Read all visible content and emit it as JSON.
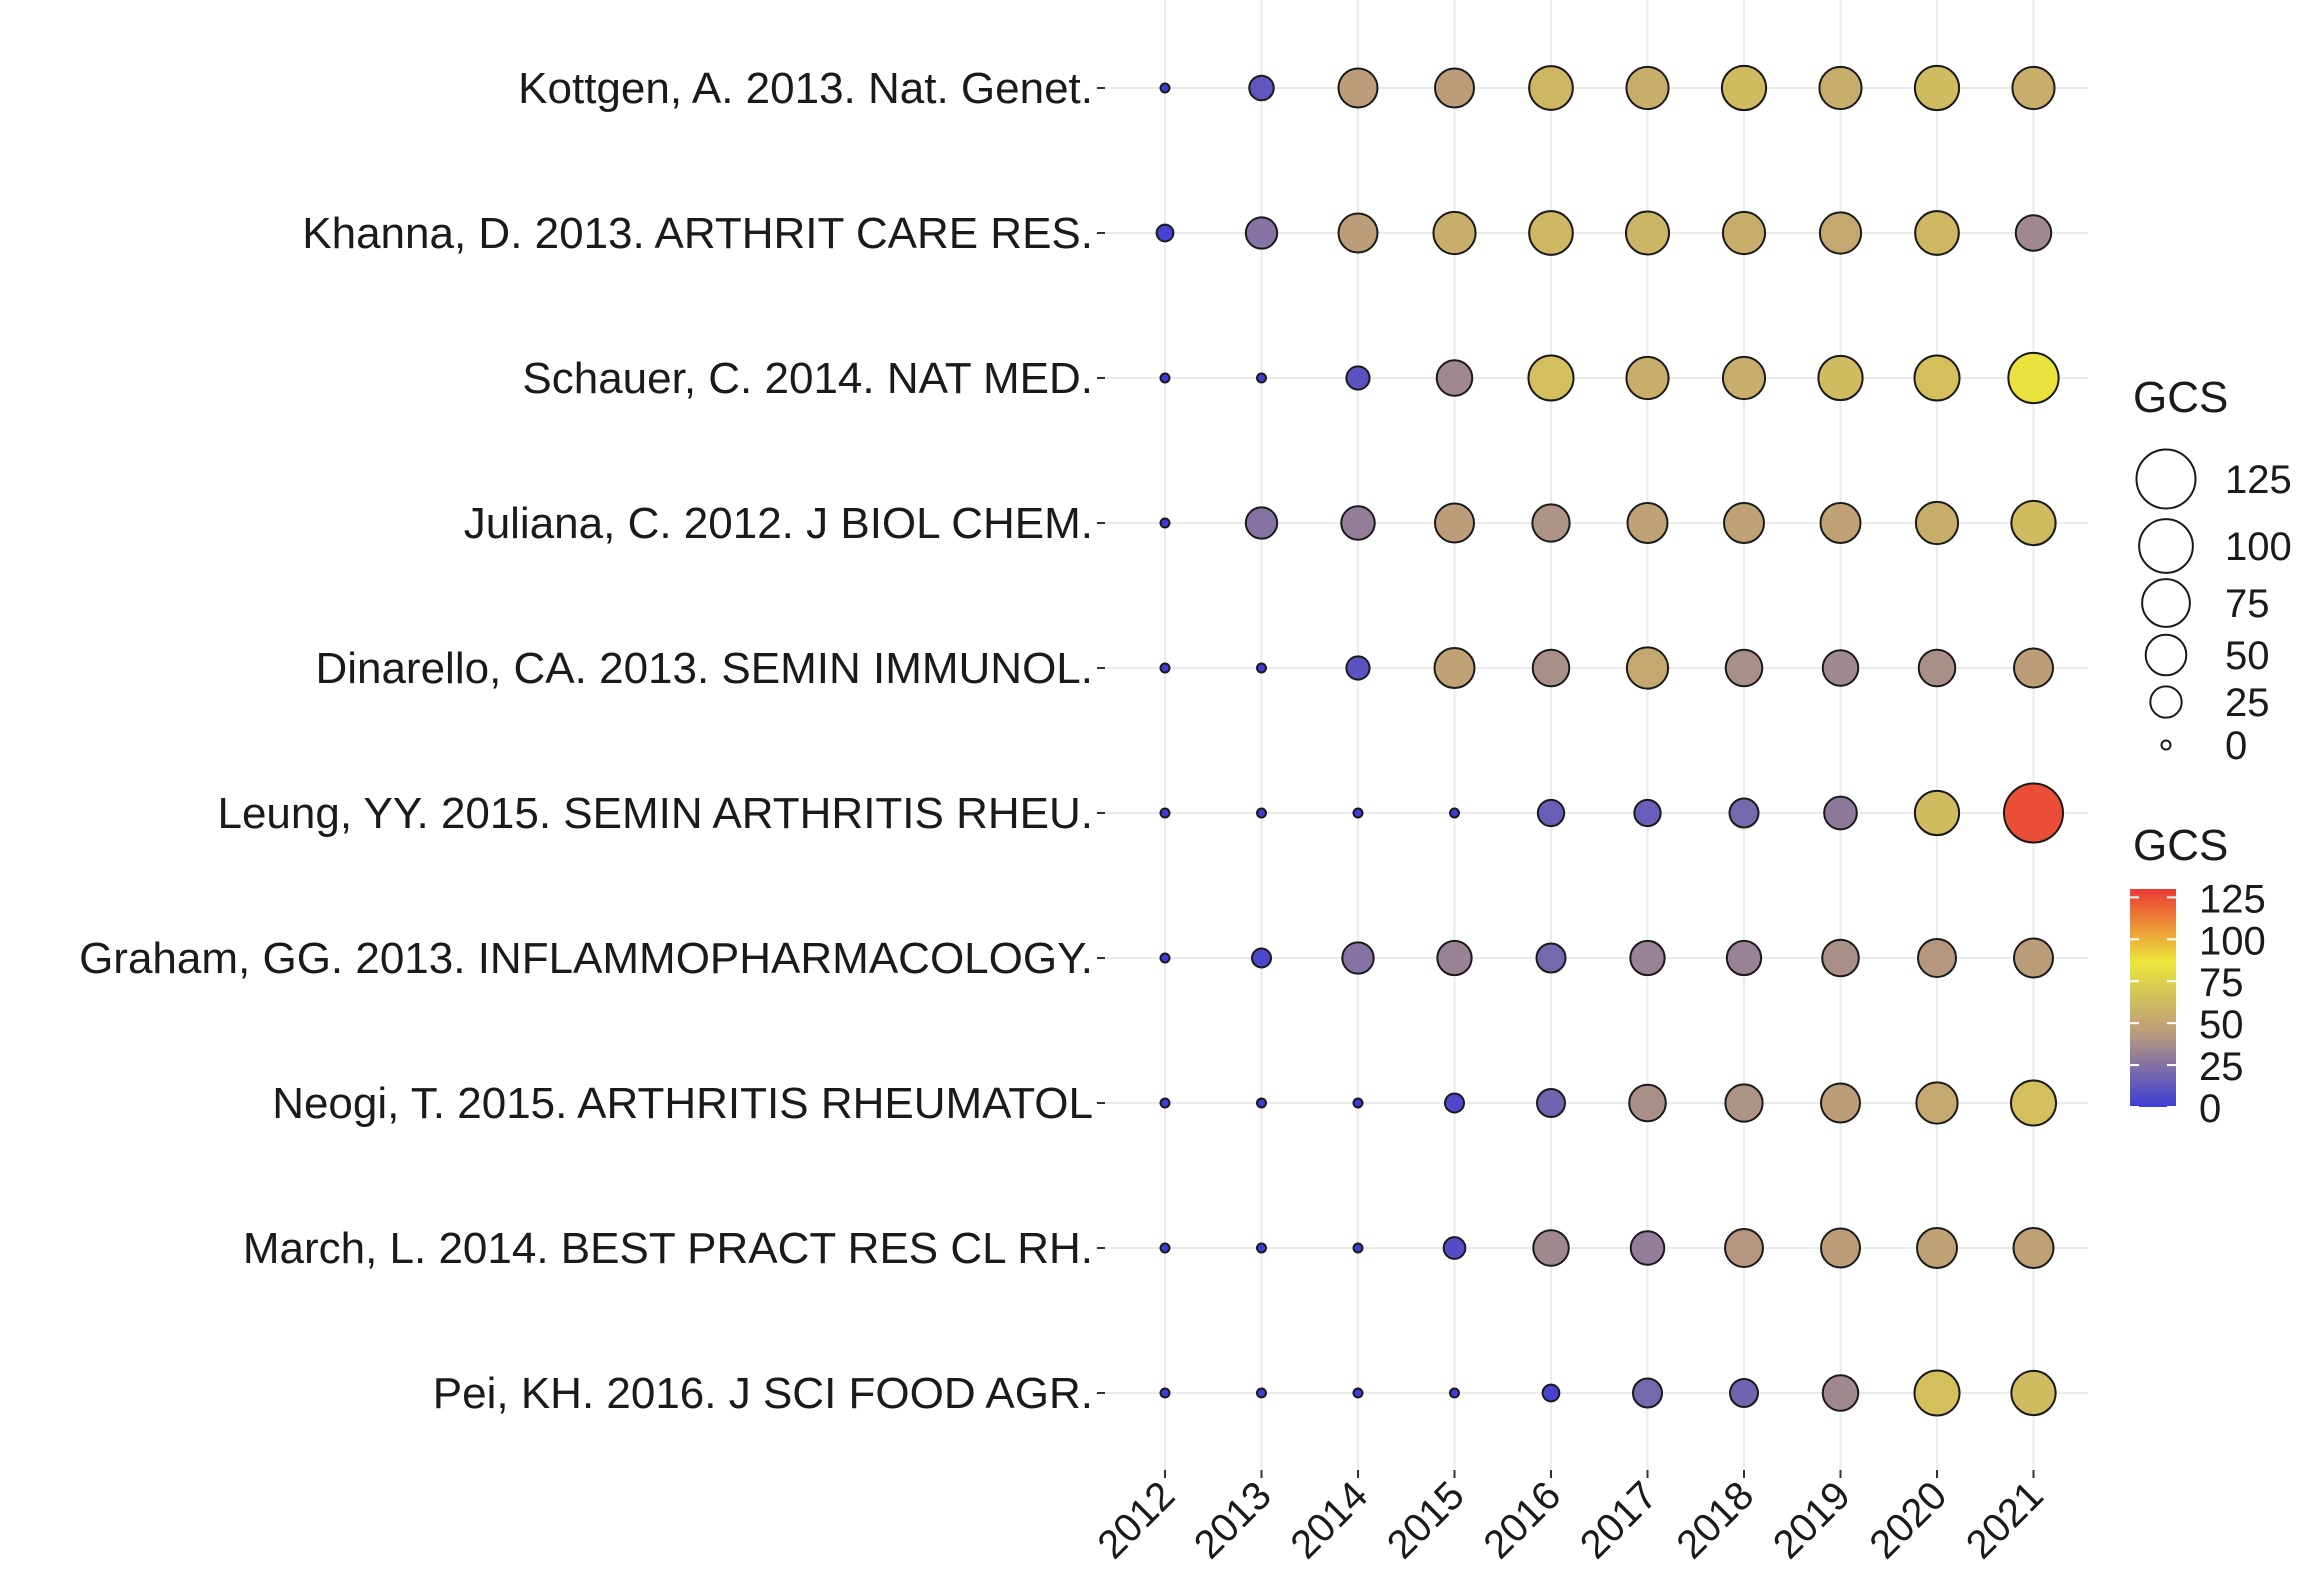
{
  "chart_data": {
    "type": "scatter",
    "subtype": "bubble-timeline",
    "title": "",
    "xlabel": "",
    "ylabel": "",
    "years": [
      "2012",
      "2013",
      "2014",
      "2015",
      "2016",
      "2017",
      "2018",
      "2019",
      "2020",
      "2021"
    ],
    "rows": [
      {
        "label": "Kottgen, A. 2013. Nat. Genet.",
        "values": [
          0,
          12,
          45,
          45,
          60,
          55,
          62,
          55,
          62,
          55
        ]
      },
      {
        "label": "Khanna, D. 2013. ARTHRIT CARE RES.",
        "values": [
          3,
          25,
          45,
          55,
          60,
          58,
          55,
          52,
          60,
          35
        ]
      },
      {
        "label": "Schauer, C. 2014. NAT MED.",
        "values": [
          0,
          0,
          10,
          35,
          65,
          55,
          55,
          62,
          65,
          85
        ]
      },
      {
        "label": "Juliana, C. 2012. J BIOL CHEM.",
        "values": [
          0,
          25,
          30,
          45,
          40,
          48,
          48,
          48,
          55,
          62
        ]
      },
      {
        "label": "Dinarello, CA. 2013. SEMIN IMMUNOL.",
        "values": [
          0,
          0,
          10,
          48,
          38,
          52,
          38,
          35,
          38,
          45
        ]
      },
      {
        "label": "Leung, YY. 2015. SEMIN ARTHRITIS RHEU.",
        "values": [
          0,
          0,
          0,
          0,
          15,
          15,
          20,
          28,
          62,
          125
        ]
      },
      {
        "label": "Graham, GG. 2013. INFLAMMOPHARMACOLOGY.",
        "values": [
          0,
          5,
          25,
          32,
          20,
          32,
          32,
          38,
          42,
          45
        ]
      },
      {
        "label": "Neogi, T. 2015. ARTHRITIS RHEUMATOL",
        "values": [
          0,
          0,
          0,
          5,
          18,
          38,
          40,
          45,
          52,
          65
        ]
      },
      {
        "label": "March, L. 2014. BEST PRACT RES CL RH.",
        "values": [
          0,
          0,
          0,
          8,
          35,
          30,
          42,
          45,
          48,
          48
        ]
      },
      {
        "label": "Pei, KH. 2016. J SCI FOOD AGR.",
        "values": [
          0,
          0,
          0,
          0,
          3,
          20,
          18,
          35,
          65,
          62
        ]
      }
    ],
    "size_legend": {
      "title": "GCS",
      "values": [
        125,
        100,
        75,
        50,
        25,
        0
      ],
      "labels": [
        "125",
        "100",
        "75",
        "50",
        "25",
        "0"
      ]
    },
    "color_legend": {
      "title": "GCS",
      "range": [
        0,
        130
      ],
      "ticks": [
        125,
        100,
        75,
        50,
        25,
        0
      ],
      "labels": [
        "125",
        "100",
        "75",
        "50",
        "25",
        "0"
      ],
      "colors": [
        "#3d3dd6",
        "#b99a7d",
        "#ece63a",
        "#eb3a35"
      ]
    },
    "grid": true,
    "legend_position": "right"
  }
}
